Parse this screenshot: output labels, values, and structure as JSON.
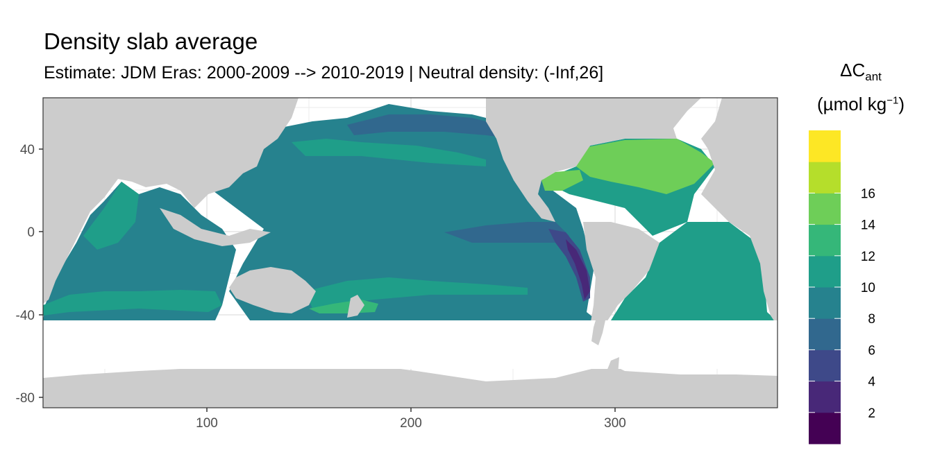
{
  "title": "Density slab average",
  "subtitle": "Estimate: JDM Eras: 2000-2009 --> 2010-2019 | Neutral density: (-Inf,26]",
  "legend": {
    "title_line1_main": "ΔC",
    "title_line1_sub": "ant",
    "title_line2_main": "(µmol kg",
    "title_line2_sup": "−1",
    "title_line2_end": ")",
    "labels": [
      "2",
      "4",
      "6",
      "8",
      "10",
      "12",
      "14",
      "16"
    ],
    "colors": [
      "#440154",
      "#482878",
      "#3e4989",
      "#31688e",
      "#26828e",
      "#1f9e89",
      "#35b779",
      "#6ece58",
      "#b5de2b",
      "#fde725"
    ]
  },
  "chart_data": {
    "type": "heatmap",
    "xlim": [
      20,
      380
    ],
    "ylim": [
      -85,
      65
    ],
    "x_ticks": [
      "100",
      "200",
      "300"
    ],
    "y_ticks": [
      "40",
      "0",
      "-40",
      "-80"
    ],
    "colors": {
      "land": "#cccccc",
      "no_data": "#ffffff",
      "grid": "#ebebeb"
    }
  }
}
